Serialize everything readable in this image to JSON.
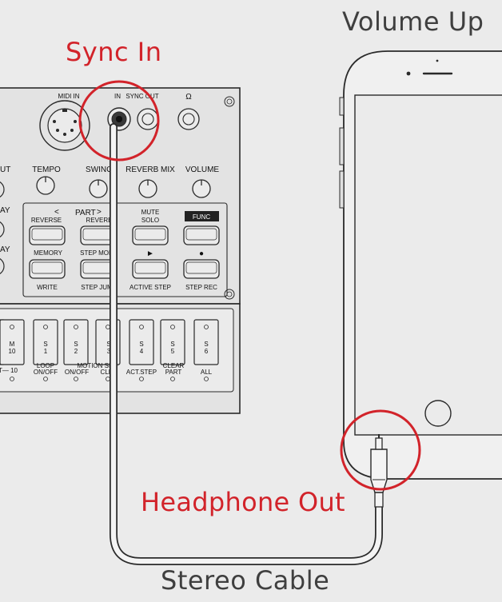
{
  "labels": {
    "sync_in": "Sync In",
    "volume_up": "Volume Up",
    "headphone_out": "Headphone Out",
    "stereo_cable": "Stereo Cable"
  },
  "device": {
    "jacks": {
      "midi_in": "MIDI IN",
      "in": "IN",
      "sync_out": "SYNC OUT",
      "headphone": "Ω"
    },
    "left_partial": {
      "row1": "UT",
      "row2": "AY",
      "row3": "AY"
    },
    "knobs": {
      "tempo": "TEMPO",
      "swing": "SWING",
      "reverb_mix": "REVERB MIX",
      "volume": "VOLUME"
    },
    "part": {
      "prev": "<",
      "label": "PART",
      "next": ">"
    },
    "buttons": {
      "reverse": "REVERSE",
      "reverb": "REVERB",
      "mute": "MUTE",
      "solo": "SOLO",
      "func": "FUNC",
      "memory": "MEMORY",
      "step_mode": "STEP MOD",
      "play": "►",
      "record": "●",
      "write": "WRITE",
      "step_jump": "STEP JUM",
      "active_step": "ACTIVE STEP",
      "step_rec": "STEP REC"
    },
    "steps": {
      "m10_top": "M",
      "m10_bottom": "10",
      "s1_top": "S",
      "s1_bottom": "1",
      "s2_top": "S",
      "s2_bottom": "2",
      "s3_top": "S",
      "s3_bottom": "3",
      "s4_top": "S",
      "s4_bottom": "4",
      "s5_top": "S",
      "s5_bottom": "5",
      "s6_top": "S",
      "s6_bottom": "6",
      "t10": "T— 10",
      "loop": "LOOP",
      "loop_onoff": "ON/OFF",
      "motion_seq": "MOTION SEQ",
      "motion_onoff": "ON/OFF",
      "clear_partial": "CLEA",
      "act_step": "ACT.STEP",
      "clear": "CLEAR",
      "part": "PART",
      "all": "ALL"
    }
  },
  "colors": {
    "accent_red": "#d2232a",
    "background": "#ebebeb",
    "outline": "#2a2a2a"
  }
}
